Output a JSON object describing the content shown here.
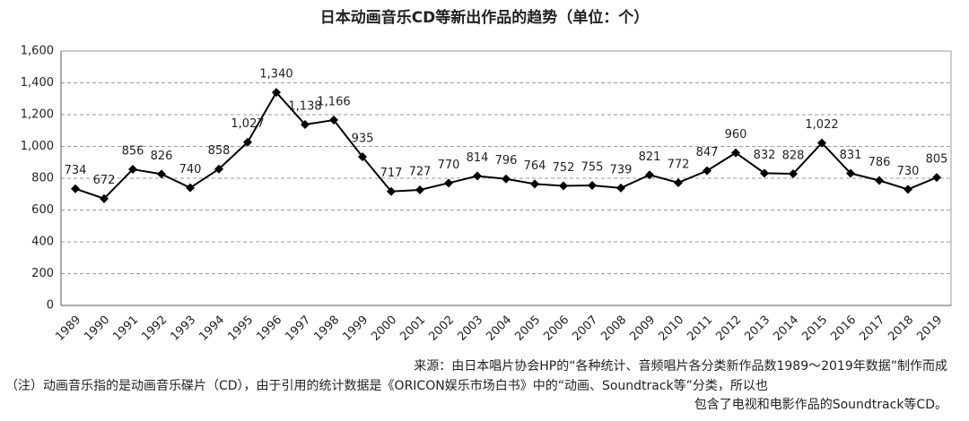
{
  "chart_data": {
    "type": "line",
    "title": "日本动画音乐CD等新出作品的趋势（单位：个）",
    "categories": [
      "1989",
      "1990",
      "1991",
      "1992",
      "1993",
      "1994",
      "1995",
      "1996",
      "1997",
      "1998",
      "1999",
      "2000",
      "2001",
      "2002",
      "2003",
      "2004",
      "2005",
      "2006",
      "2007",
      "2008",
      "2009",
      "2010",
      "2011",
      "2012",
      "2013",
      "2014",
      "2015",
      "2016",
      "2017",
      "2018",
      "2019"
    ],
    "values": [
      734,
      672,
      856,
      826,
      740,
      858,
      1027,
      1340,
      1138,
      1166,
      935,
      717,
      727,
      770,
      814,
      796,
      764,
      752,
      755,
      739,
      821,
      772,
      847,
      960,
      832,
      828,
      1022,
      831,
      786,
      730,
      805
    ],
    "value_labels": [
      "734",
      "672",
      "856",
      "826",
      "740",
      "858",
      "1,027",
      "1,340",
      "1,138",
      "1,166",
      "935",
      "717",
      "727",
      "770",
      "814",
      "796",
      "764",
      "752",
      "755",
      "739",
      "821",
      "772",
      "847",
      "960",
      "832",
      "828",
      "1,022",
      "831",
      "786",
      "730",
      "805"
    ],
    "color": "#000000",
    "ylim": [
      0,
      1600
    ],
    "yticks": [
      0,
      200,
      400,
      600,
      800,
      {
        "value": 1000,
        "label": "1,000"
      },
      {
        "value": 1200,
        "label": "1,200"
      },
      {
        "value": 1400,
        "label": "1,400"
      },
      {
        "value": 1600,
        "label": "1,600"
      }
    ],
    "grid": true,
    "notes": [
      "来源：由日本唱片协会HP的“各种统计、音频唱片各分类新作品数1989～2019年数据”制作而成",
      "（注）动画音乐指的是动画音乐碟片（CD），由于引用的统计数据是《ORICON娱乐市场白书》中的“动画、Soundtrack等”分类，所以也",
      "包含了电视和电影作品的Soundtrack等CD。"
    ]
  }
}
